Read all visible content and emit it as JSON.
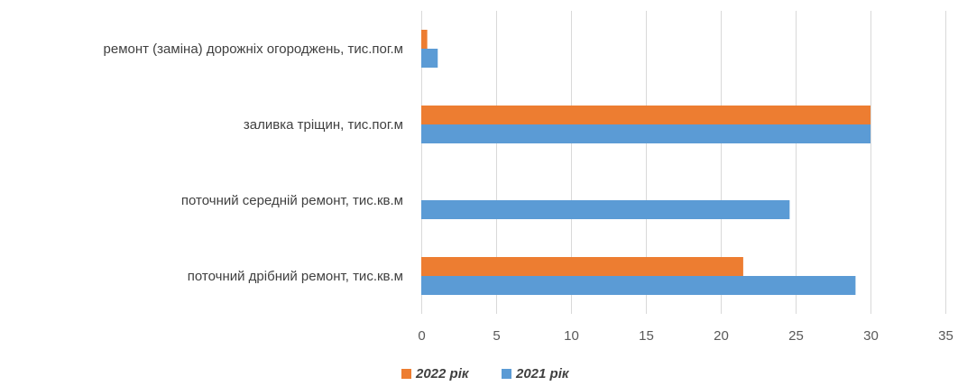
{
  "chart_data": {
    "type": "bar",
    "orientation": "horizontal",
    "categories": [
      "поточний дрібний ремонт, тис.кв.м",
      "поточний середній ремонт, тис.кв.м",
      "заливка тріщин, тис.пог.м",
      "ремонт (заміна) дорожніх огороджень, тис.пог.м"
    ],
    "series": [
      {
        "name": "2022 рік",
        "color": "#ed7d31",
        "values": [
          21.5,
          0,
          30,
          0.4
        ]
      },
      {
        "name": "2021 рік",
        "color": "#5b9bd5",
        "values": [
          29,
          24.6,
          30,
          1.1
        ]
      }
    ],
    "xlim": [
      0,
      35
    ],
    "xticks": [
      0,
      5,
      10,
      15,
      20,
      25,
      30,
      35
    ],
    "grid": true,
    "legend_position": "bottom"
  }
}
